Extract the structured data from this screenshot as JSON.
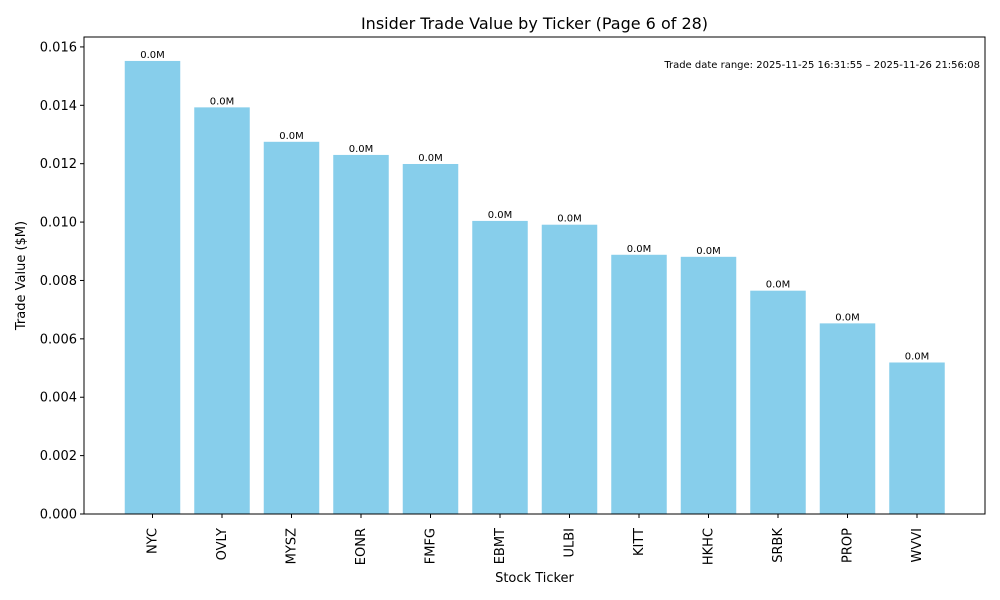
{
  "chart_data": {
    "type": "bar",
    "title": "Insider Trade Value by Ticker (Page 6 of 28)",
    "xlabel": "Stock Ticker",
    "ylabel": "Trade Value ($M)",
    "categories": [
      "NYC",
      "OVLY",
      "MYSZ",
      "EONR",
      "FMFG",
      "EBMT",
      "ULBI",
      "KITT",
      "HKHC",
      "SRBK",
      "PROP",
      "WVVI"
    ],
    "values": [
      0.01552,
      0.01393,
      0.01275,
      0.0123,
      0.01199,
      0.01004,
      0.00991,
      0.00888,
      0.00881,
      0.00765,
      0.00653,
      0.00519
    ],
    "data_labels": [
      "0.0M",
      "0.0M",
      "0.0M",
      "0.0M",
      "0.0M",
      "0.0M",
      "0.0M",
      "0.0M",
      "0.0M",
      "0.0M",
      "0.0M",
      "0.0M"
    ],
    "ylim": [
      0,
      0.01634
    ],
    "yticks": [
      0.0,
      0.002,
      0.004,
      0.006,
      0.008,
      0.01,
      0.012,
      0.014,
      0.016
    ],
    "ytick_labels": [
      "0.000",
      "0.002",
      "0.004",
      "0.006",
      "0.008",
      "0.010",
      "0.012",
      "0.014",
      "0.016"
    ],
    "bar_color": "#87ceeb",
    "grid": false,
    "annotation": "Trade date range: 2025-11-25 16:31:55 – 2025-11-26 21:56:08"
  }
}
